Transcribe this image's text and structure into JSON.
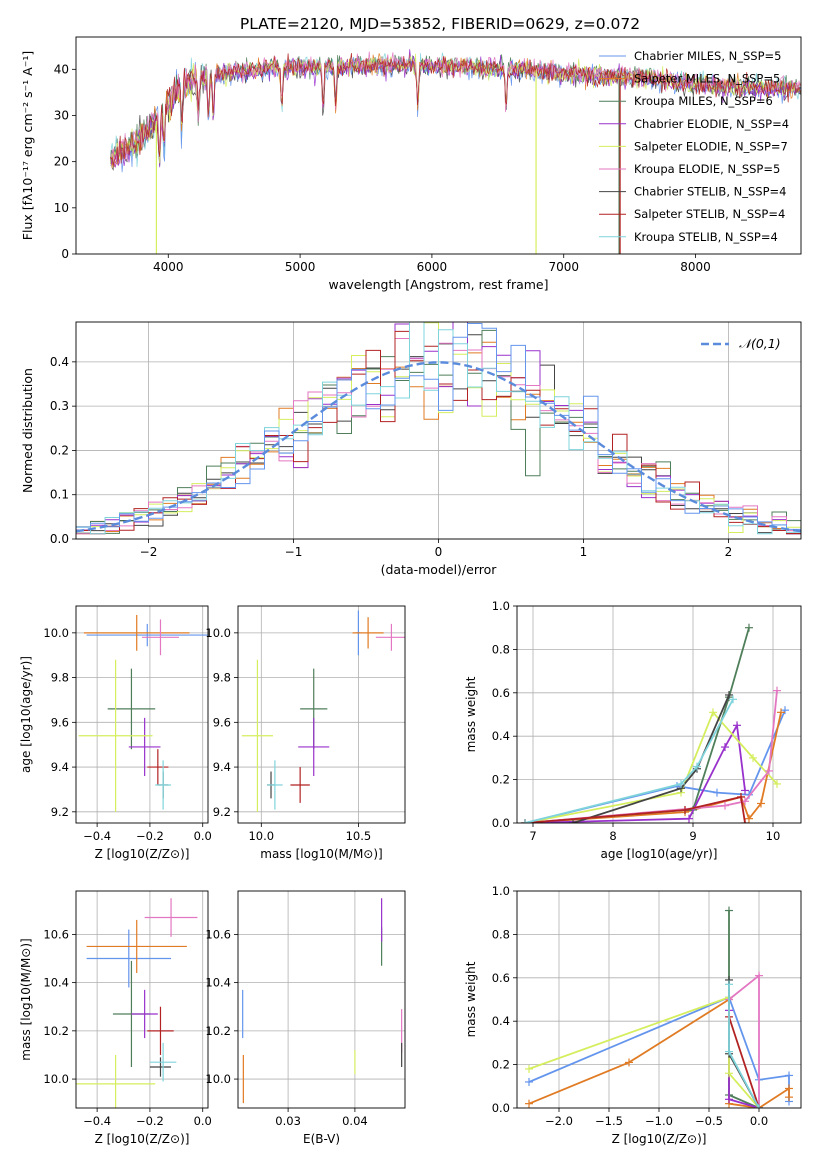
{
  "figure_title": "PLATE=2120, MJD=53852, FIBERID=0629, z=0.072",
  "colors": [
    "#6495ED",
    "#E07B24",
    "#4F7F5A",
    "#9932CC",
    "#D4EE5E",
    "#E377C2",
    "#444444",
    "#B22222",
    "#7FD4DC"
  ],
  "chart_data": [
    {
      "id": "spectrum",
      "type": "line",
      "xlabel": "wavelength [Angstrom, rest frame]",
      "ylabel": "Flux [fλ10⁻¹⁷ erg cm⁻² s⁻¹ A⁻¹]",
      "xlim": [
        3300,
        8800
      ],
      "ylim": [
        0,
        47
      ],
      "xticks": [
        4000,
        5000,
        6000,
        7000,
        8000
      ],
      "yticks": [
        0,
        10,
        20,
        30,
        40
      ],
      "grid": false,
      "legend_position": "top-right",
      "legend": [
        "Chabrier MILES, N_SSP=5",
        "Salpeter MILES, N_SSP=5",
        "Kroupa MILES, N_SSP=6",
        "Chabrier ELODIE, N_SSP=4",
        "Salpeter ELODIE, N_SSP=7",
        "Kroupa ELODIE, N_SSP=5",
        "Chabrier STELIB, N_SSP=4",
        "Salpeter STELIB, N_SSP=4",
        "Kroupa STELIB, N_SSP=4"
      ],
      "continuum": {
        "x": [
          3560,
          3650,
          3750,
          3850,
          3950,
          4050,
          4150,
          4300,
          4500,
          4700,
          4900,
          5100,
          5300,
          5500,
          5700,
          5900,
          6100,
          6300,
          6500,
          6700,
          6900,
          7100,
          7300,
          7500,
          7700,
          7900,
          8100,
          8300,
          8500,
          8800
        ],
        "y": [
          20,
          22,
          24,
          27,
          30,
          35,
          37,
          38.5,
          39.5,
          40,
          40.5,
          40.5,
          40.5,
          41,
          41,
          41,
          40.5,
          40.5,
          40,
          40,
          39.5,
          39,
          38.5,
          38.5,
          38,
          37,
          36.5,
          36,
          36,
          36
        ]
      },
      "absorption_lines": [
        3934,
        3969,
        4102,
        4227,
        4305,
        4341,
        4861,
        5175,
        5270,
        5893,
        6563
      ],
      "spikes": {
        "x": [
          3910,
          6790,
          7420
        ],
        "y": [
          0,
          0,
          0
        ]
      }
    },
    {
      "id": "residuals",
      "type": "histogram",
      "xlabel": "(data-model)/error",
      "ylabel": "Normed distribution",
      "xlim": [
        -2.5,
        2.5
      ],
      "ylim": [
        0,
        0.49
      ],
      "xticks": [
        -2,
        -1,
        0,
        1,
        2
      ],
      "yticks": [
        0.0,
        0.1,
        0.2,
        0.3,
        0.4
      ],
      "grid": true,
      "legend_position": "top-right",
      "legend": [
        "𝒩(0,1)"
      ],
      "bin_width": 0.1,
      "bin_range": [
        -2.6,
        2.6
      ]
    },
    {
      "id": "age_vs_Z",
      "type": "errorbar",
      "xlabel": "Z [log10(Z/Z⊙)]",
      "ylabel": "age [log10(age/yr)]",
      "xlim": [
        -0.48,
        0.02
      ],
      "ylim": [
        9.15,
        10.12
      ],
      "xticks": [
        -0.4,
        -0.2,
        0.0
      ],
      "yticks": [
        9.2,
        9.4,
        9.6,
        9.8,
        10.0
      ],
      "grid": true,
      "points": [
        {
          "x": -0.21,
          "xerr": 0.23,
          "y": 9.99,
          "yerr": 0.05
        },
        {
          "x": -0.25,
          "xerr": 0.2,
          "y": 10.0,
          "yerr": 0.08
        },
        {
          "x": -0.27,
          "xerr": 0.09,
          "y": 9.66,
          "yerr": 0.18
        },
        {
          "x": -0.22,
          "xerr": 0.06,
          "y": 9.49,
          "yerr": 0.13
        },
        {
          "x": -0.33,
          "xerr": 0.14,
          "y": 9.54,
          "yerr": 0.34
        },
        {
          "x": -0.16,
          "xerr": 0.07,
          "y": 9.98,
          "yerr": 0.08
        },
        {
          "x": -0.15,
          "xerr": 0.02,
          "y": 9.32,
          "yerr": 0.06
        },
        {
          "x": -0.17,
          "xerr": 0.04,
          "y": 9.4,
          "yerr": 0.08
        },
        {
          "x": -0.15,
          "xerr": 0.03,
          "y": 9.32,
          "yerr": 0.11
        }
      ]
    },
    {
      "id": "age_vs_mass",
      "type": "errorbar",
      "xlabel": "mass [log10(M/M⊙)]",
      "ylabel": "",
      "xlim": [
        9.88,
        10.74
      ],
      "ylim": [
        9.15,
        10.12
      ],
      "xticks": [
        10.0,
        10.5
      ],
      "yticks": [
        9.2,
        9.4,
        9.6,
        9.8,
        10.0
      ],
      "grid": true,
      "points": [
        {
          "x": 10.5,
          "xerr": 0.01,
          "y": 10.0,
          "yerr": 0.1
        },
        {
          "x": 10.55,
          "xerr": 0.08,
          "y": 10.0,
          "yerr": 0.07
        },
        {
          "x": 10.27,
          "xerr": 0.07,
          "y": 9.66,
          "yerr": 0.18
        },
        {
          "x": 10.27,
          "xerr": 0.08,
          "y": 9.49,
          "yerr": 0.13
        },
        {
          "x": 9.98,
          "xerr": 0.08,
          "y": 9.54,
          "yerr": 0.34
        },
        {
          "x": 10.67,
          "xerr": 0.08,
          "y": 9.98,
          "yerr": 0.06
        },
        {
          "x": 10.05,
          "xerr": 0.02,
          "y": 9.32,
          "yerr": 0.06
        },
        {
          "x": 10.2,
          "xerr": 0.05,
          "y": 9.32,
          "yerr": 0.08
        },
        {
          "x": 10.07,
          "xerr": 0.04,
          "y": 9.32,
          "yerr": 0.11
        }
      ]
    },
    {
      "id": "mass_weight_vs_age",
      "type": "line",
      "xlabel": "age [log10(age/yr)]",
      "ylabel": "mass weight",
      "xlim": [
        6.8,
        10.35
      ],
      "ylim": [
        0,
        1.0
      ],
      "xticks": [
        7,
        8,
        9,
        10
      ],
      "yticks": [
        0.0,
        0.2,
        0.4,
        0.6,
        0.8,
        1.0
      ],
      "grid": true,
      "series": [
        {
          "x": [
            6.9,
            8.8,
            9.3,
            9.7,
            10.15
          ],
          "y": [
            0.0,
            0.17,
            0.14,
            0.13,
            0.52
          ]
        },
        {
          "x": [
            6.9,
            8.9,
            9.6,
            9.7,
            9.85,
            10.1
          ],
          "y": [
            0.0,
            0.05,
            0.12,
            0.02,
            0.09,
            0.51
          ]
        },
        {
          "x": [
            6.9,
            8.9,
            9.0,
            9.45,
            9.7
          ],
          "y": [
            0.0,
            0.06,
            0.06,
            0.58,
            0.9
          ]
        },
        {
          "x": [
            6.9,
            8.95,
            9.4,
            9.55,
            9.65
          ],
          "y": [
            0.0,
            0.02,
            0.35,
            0.45,
            0.15
          ]
        },
        {
          "x": [
            6.9,
            8.85,
            9.25,
            9.75,
            10.05
          ],
          "y": [
            0.0,
            0.14,
            0.51,
            0.3,
            0.18
          ]
        },
        {
          "x": [
            6.9,
            9.4,
            9.65,
            9.95,
            10.05
          ],
          "y": [
            0.0,
            0.08,
            0.1,
            0.24,
            0.61
          ]
        },
        {
          "x": [
            7.5,
            8.85,
            9.05,
            9.45
          ],
          "y": [
            0.0,
            0.16,
            0.25,
            0.59
          ]
        },
        {
          "x": [
            6.9,
            8.9,
            9.6,
            9.65
          ],
          "y": [
            0.0,
            0.06,
            0.12,
            0.0
          ]
        },
        {
          "x": [
            6.9,
            8.85,
            9.05,
            9.5
          ],
          "y": [
            0.0,
            0.18,
            0.26,
            0.57
          ]
        }
      ]
    },
    {
      "id": "mass_vs_Z",
      "type": "errorbar",
      "xlabel": "Z [log10(Z/Z⊙)]",
      "ylabel": "mass [log10(M/M⊙)]",
      "xlim": [
        -0.48,
        0.02
      ],
      "ylim": [
        9.88,
        10.78
      ],
      "xticks": [
        -0.4,
        -0.2,
        0.0
      ],
      "yticks": [
        10.0,
        10.2,
        10.4,
        10.6
      ],
      "grid": true,
      "points": [
        {
          "x": -0.28,
          "xerr": 0.16,
          "y": 10.5,
          "yerr": 0.12
        },
        {
          "x": -0.25,
          "xerr": 0.19,
          "y": 10.55,
          "yerr": 0.11
        },
        {
          "x": -0.27,
          "xerr": 0.07,
          "y": 10.27,
          "yerr": 0.22
        },
        {
          "x": -0.22,
          "xerr": 0.05,
          "y": 10.27,
          "yerr": 0.1
        },
        {
          "x": -0.33,
          "xerr": 0.15,
          "y": 9.98,
          "yerr": 0.12
        },
        {
          "x": -0.12,
          "xerr": 0.1,
          "y": 10.67,
          "yerr": 0.08
        },
        {
          "x": -0.16,
          "xerr": 0.04,
          "y": 10.05,
          "yerr": 0.04
        },
        {
          "x": -0.16,
          "xerr": 0.05,
          "y": 10.2,
          "yerr": 0.1
        },
        {
          "x": -0.15,
          "xerr": 0.05,
          "y": 10.07,
          "yerr": 0.08
        }
      ]
    },
    {
      "id": "mass_vs_EBV",
      "type": "errorbar",
      "xlabel": "E(B-V)",
      "ylabel": "",
      "xlim": [
        0.0225,
        0.0475
      ],
      "ylim": [
        9.88,
        10.78
      ],
      "xticks": [
        0.03,
        0.04
      ],
      "yticks": [
        10.0,
        10.2,
        10.4,
        10.6
      ],
      "grid": true,
      "points": [
        {
          "x": 0.0232,
          "xerr": 0,
          "y": 10.27,
          "yerr": 0.1
        },
        {
          "x": 0.0233,
          "xerr": 0,
          "y": 10.0,
          "yerr": 0.1
        },
        {
          "x": 0.044,
          "xerr": 0,
          "y": 10.55,
          "yerr": 0.08
        },
        {
          "x": 0.044,
          "xerr": 0,
          "y": 10.66,
          "yerr": 0.09
        },
        {
          "x": 0.04,
          "xerr": 0,
          "y": 10.07,
          "yerr": 0.05
        },
        {
          "x": 0.047,
          "xerr": 0,
          "y": 10.2,
          "yerr": 0.09
        },
        {
          "x": 0.047,
          "xerr": 0,
          "y": 10.1,
          "yerr": 0.05
        }
      ]
    },
    {
      "id": "mass_weight_vs_Z",
      "type": "line",
      "xlabel": "Z [log10(Z/Z⊙)]",
      "ylabel": "mass weight",
      "xlim": [
        -2.42,
        0.42
      ],
      "ylim": [
        0,
        1.0
      ],
      "xticks": [
        -2.0,
        -1.5,
        -1.0,
        -0.5,
        0.0
      ],
      "yticks": [
        0.0,
        0.2,
        0.4,
        0.6,
        0.8,
        1.0
      ],
      "grid": true,
      "series": [
        {
          "x": [
            -2.3,
            -0.3,
            0.0,
            0.3,
            0.3
          ],
          "y": [
            0.12,
            0.51,
            0.13,
            0.15,
            0.03
          ]
        },
        {
          "x": [
            -2.3,
            -1.3,
            -0.3,
            -0.3,
            0.0,
            0.3,
            0.3
          ],
          "y": [
            0.02,
            0.21,
            0.5,
            0.02,
            0.0,
            0.09,
            0.05
          ]
        },
        {
          "x": [
            -0.3,
            -0.3,
            0.0
          ],
          "y": [
            0.91,
            0.06,
            0.0
          ]
        },
        {
          "x": [
            -0.3,
            -0.3,
            0.0
          ],
          "y": [
            0.45,
            0.04,
            0.0
          ]
        },
        {
          "x": [
            -2.3,
            -0.3,
            -0.3,
            0.0
          ],
          "y": [
            0.18,
            0.51,
            0.16,
            0.0
          ]
        },
        {
          "x": [
            -0.3,
            0.0,
            0.0
          ],
          "y": [
            0.5,
            0.61,
            0.0
          ]
        },
        {
          "x": [
            -0.3,
            -0.3,
            0.0
          ],
          "y": [
            0.59,
            0.25,
            0.0
          ]
        },
        {
          "x": [
            -0.3,
            0.0
          ],
          "y": [
            0.42,
            0.0
          ]
        },
        {
          "x": [
            -0.3,
            -0.3,
            0.0
          ],
          "y": [
            0.57,
            0.26,
            0.0
          ]
        }
      ]
    }
  ]
}
